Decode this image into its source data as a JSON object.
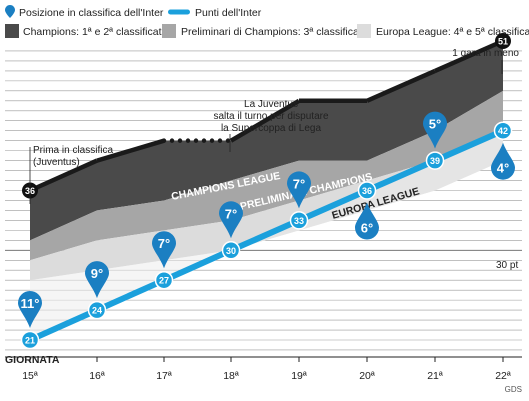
{
  "legend": {
    "row1": [
      {
        "type": "marker",
        "color": "#1b7fc2",
        "label": "Posizione in classifica dell'Inter"
      },
      {
        "type": "line",
        "color": "#1ba0dc",
        "label": "Punti dell'Inter"
      }
    ],
    "row2": [
      {
        "type": "swatch",
        "color": "#4a4a4a",
        "label": "Champions: 1ª e 2ª classificata"
      },
      {
        "type": "swatch",
        "color": "#a6a6a6",
        "label": "Preliminari di Champions: 3ª classificata"
      },
      {
        "type": "swatch",
        "color": "#dcdcdc",
        "label": "Europa League: 4ª e 5ª classificata"
      }
    ]
  },
  "bands": {
    "champions": {
      "label": "CHAMPIONS LEAGUE",
      "color": "#4a4a4a"
    },
    "preliminari": {
      "label": "PRELIMINARI CHAMPIONS",
      "color": "#a6a6a6"
    },
    "europa": {
      "label": "EUROPA LEAGUE",
      "color": "#dcdcdc"
    }
  },
  "annotations": {
    "leader": {
      "lines": [
        "Prima in classifica",
        "(Juventus)"
      ]
    },
    "juventus": {
      "lines": [
        "La Juventus",
        "salta il turno per disputare",
        "la Supercoppa di Lega"
      ]
    },
    "gara": {
      "text": "1 gara in meno"
    },
    "thirty": {
      "text": "30 pt"
    }
  },
  "axis": {
    "title": "GIORNATA",
    "source": "GDS"
  },
  "chart_data": {
    "type": "line",
    "x": [
      "15ª",
      "16ª",
      "17ª",
      "18ª",
      "19ª",
      "20ª",
      "21ª",
      "22ª"
    ],
    "y_range": [
      20,
      53
    ],
    "series": [
      {
        "name": "Punti dell'Inter",
        "color": "#1ba0dc",
        "values": [
          21,
          24,
          27,
          30,
          33,
          36,
          39,
          42
        ],
        "positions": [
          "11°",
          "9°",
          "7°",
          "7°",
          "7°",
          "6°",
          "5°",
          "4°"
        ],
        "position_side": [
          "above",
          "above",
          "above",
          "above",
          "above",
          "below",
          "above",
          "below"
        ]
      },
      {
        "name": "Prima in classifica (Juventus)",
        "color": "#1a1a1a",
        "values": [
          36,
          39,
          41,
          41,
          45,
          45,
          48,
          51
        ],
        "labels": [
          "36",
          "",
          "",
          "",
          "",
          "",
          "",
          "51"
        ]
      },
      {
        "name": "Champions: 1ª e 2ª classificata",
        "color": "#4a4a4a",
        "values": [
          31,
          34,
          35,
          37,
          39,
          39,
          42,
          46
        ]
      },
      {
        "name": "Preliminari di Champions: 3ª classificata",
        "color": "#a6a6a6",
        "values": [
          29,
          31,
          32,
          33,
          35,
          37,
          39,
          42
        ]
      },
      {
        "name": "Europa League: 4ª e 5ª classificata",
        "color": "#dcdcdc",
        "values": [
          27,
          28,
          29,
          30,
          32,
          34,
          36,
          39
        ]
      }
    ]
  }
}
